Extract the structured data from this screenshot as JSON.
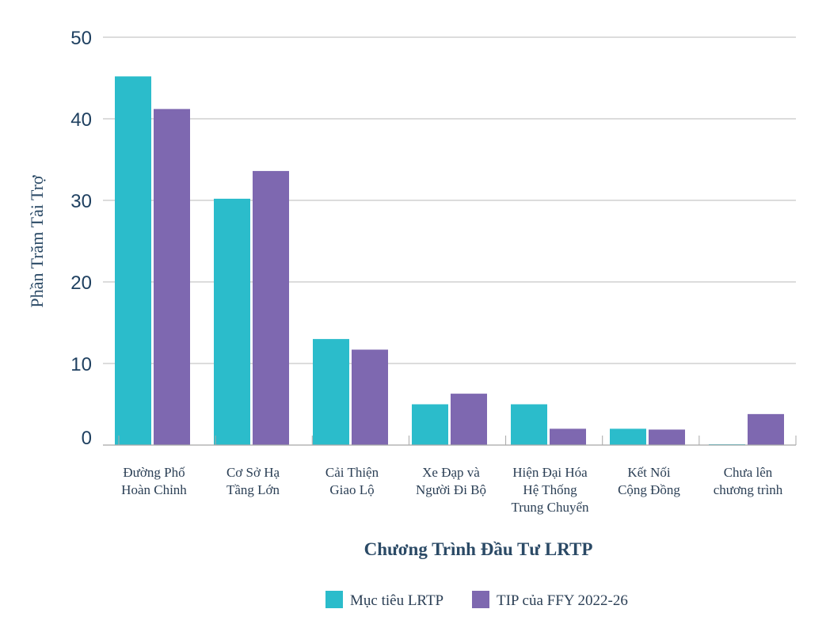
{
  "chart_data": {
    "type": "bar",
    "title": "",
    "xlabel": "Chương Trình Đầu Tư LRTP",
    "ylabel": "Phần Trăm Tài Trợ",
    "ylim": [
      0,
      50
    ],
    "yticks": [
      0,
      10,
      20,
      30,
      40,
      50
    ],
    "grid": true,
    "legend_position": "bottom-center",
    "categories": [
      [
        "Đường Phố",
        "Hoàn Chỉnh"
      ],
      [
        "Cơ Sở Hạ",
        "Tầng Lớn"
      ],
      [
        "Cải Thiện",
        "Giao Lộ"
      ],
      [
        "Xe Đạp và",
        "Người Đi Bộ"
      ],
      [
        "Hiện Đại Hóa",
        "Hệ Thống",
        "Trung Chuyển"
      ],
      [
        "Kết Nối",
        "Cộng Đồng"
      ],
      [
        "Chưa lên",
        "chương trình"
      ]
    ],
    "series": [
      {
        "name": "Mục tiêu LRTP",
        "color": "#2bbccb",
        "values": [
          45.2,
          30.2,
          13.0,
          5.0,
          5.0,
          2.0,
          0.0
        ]
      },
      {
        "name": "TIP của FFY 2022-26",
        "color": "#7e68b0",
        "values": [
          41.2,
          33.6,
          11.7,
          6.3,
          2.0,
          1.9,
          3.8
        ]
      }
    ]
  }
}
